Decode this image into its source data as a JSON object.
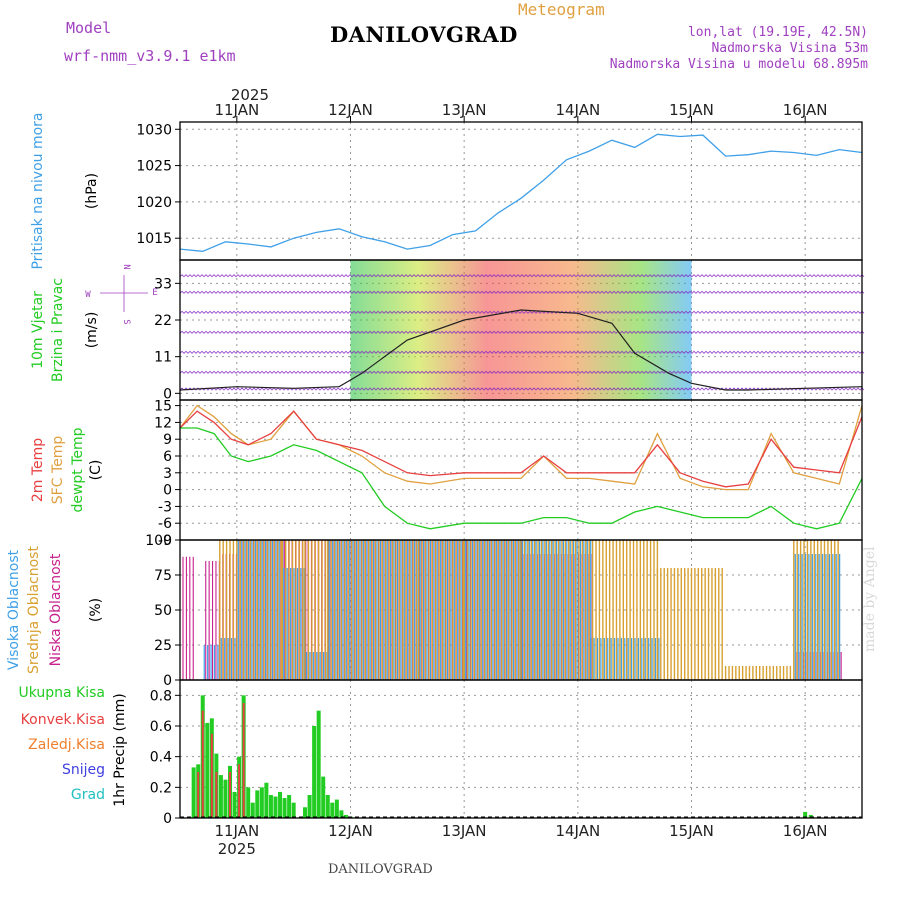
{
  "header": {
    "model_label": "Model",
    "model_name": "wrf-nmm_v3.9.1 e1km",
    "title": "DANILOVGRAD",
    "meteogram_label": "Meteogram",
    "lonlat": "lon,lat (19.19E, 42.5N)",
    "elevation": "Nadmorska Visina 53m",
    "model_elevation": "Nadmorska Visina u modelu 68.895m"
  },
  "footer": {
    "title": "DANILOVGRAD",
    "credit": "made by Angel"
  },
  "colors": {
    "pressure": "#3fa0e8",
    "temp2m": "#e84040",
    "sfc": "#e0a040",
    "dewpt": "#22cc22",
    "high_cloud": "#3fa0e8",
    "mid_cloud": "#d8a030",
    "low_cloud": "#c8208c",
    "total_precip": "#22cc22",
    "conv_precip": "#e84040",
    "frozen": "#f08030",
    "snow": "#4040e0",
    "hail": "#20c0c0",
    "wind_line": "#8020c0",
    "purple_label": "#a040c0"
  },
  "chart_data": [
    {
      "type": "line",
      "name": "pressure",
      "ylabel_top": "Pritisak na nivou mora",
      "unit": "(hPa)",
      "ylim": [
        1012,
        1031
      ],
      "yticks": [
        1015,
        1020,
        1025,
        1030
      ],
      "x_unit": "days since 2025-01-10 12:00",
      "x": [
        0,
        0.2,
        0.4,
        0.6,
        0.8,
        1.0,
        1.2,
        1.4,
        1.6,
        1.8,
        2.0,
        2.2,
        2.4,
        2.6,
        2.8,
        3.0,
        3.2,
        3.4,
        3.6,
        3.8,
        4.0,
        4.2,
        4.4,
        4.6,
        4.8,
        5.0,
        5.2,
        5.4,
        5.6,
        5.8,
        6.0
      ],
      "values": [
        1013.5,
        1013.2,
        1014.5,
        1014.2,
        1013.8,
        1015,
        1015.8,
        1016.3,
        1015.2,
        1014.5,
        1013.5,
        1014,
        1015.5,
        1016,
        1018.5,
        1020.5,
        1023,
        1025.8,
        1027,
        1028.5,
        1027.5,
        1029.3,
        1029,
        1029.2,
        1026.3,
        1026.5,
        1027,
        1026.8,
        1026.4,
        1027.2,
        1026.8
      ]
    },
    {
      "type": "line",
      "name": "wind",
      "ylabel_left": "10m Vjetar",
      "ylabel_right": "Brzina i Pravac",
      "unit": "(m/s)",
      "compass": [
        "N",
        "E",
        "S",
        "W"
      ],
      "ylim": [
        -2,
        40
      ],
      "yticks": [
        0,
        11,
        22,
        33
      ],
      "x_unit": "days since 2025-01-10 12:00",
      "x": [
        0,
        0.5,
        1.0,
        1.4,
        1.6,
        2.0,
        2.5,
        3.0,
        3.5,
        3.8,
        4.0,
        4.3,
        4.5,
        4.8,
        5.0,
        5.5,
        6.0
      ],
      "speed": [
        1,
        2,
        1.5,
        2,
        6,
        16,
        22,
        25,
        24,
        21,
        12,
        6,
        3,
        1,
        1,
        1.5,
        2
      ]
    },
    {
      "type": "line",
      "name": "temperature",
      "series_labels": [
        "2m Temp",
        "SFC Temp",
        "dewpt Temp"
      ],
      "unit": "(C)",
      "ylim": [
        -9,
        16
      ],
      "yticks": [
        -9,
        -6,
        -3,
        0,
        3,
        6,
        9,
        12,
        15
      ],
      "x_unit": "days since 2025-01-10 12:00",
      "x": [
        0,
        0.15,
        0.3,
        0.45,
        0.6,
        0.8,
        1.0,
        1.2,
        1.4,
        1.6,
        1.8,
        2.0,
        2.2,
        2.5,
        2.8,
        3.0,
        3.2,
        3.4,
        3.6,
        3.8,
        4.0,
        4.2,
        4.4,
        4.6,
        4.8,
        5.0,
        5.2,
        5.4,
        5.6,
        5.8,
        6.0
      ],
      "temp2m": [
        11,
        14,
        12,
        9,
        8,
        10,
        14,
        9,
        8,
        7,
        5,
        3,
        2.5,
        3,
        3,
        3,
        6,
        3,
        3,
        3,
        3,
        8,
        3,
        1.5,
        0.5,
        1,
        9,
        4,
        3.5,
        3,
        13
      ],
      "sfc": [
        11,
        15,
        13,
        10,
        8,
        9,
        14,
        9,
        8,
        6,
        3,
        1.5,
        1,
        2,
        2,
        2,
        6,
        2,
        2,
        1.5,
        1,
        10,
        2,
        0.5,
        0,
        0,
        10,
        3,
        2,
        1,
        15
      ],
      "dewpt": [
        11,
        11,
        10,
        6,
        5,
        6,
        8,
        7,
        5,
        3,
        -3,
        -6,
        -7,
        -6,
        -6,
        -6,
        -5,
        -5,
        -6,
        -6,
        -4,
        -3,
        -4,
        -5,
        -5,
        -5,
        -3,
        -6,
        -7,
        -6,
        2
      ]
    },
    {
      "type": "bar",
      "name": "cloud",
      "series_labels": [
        "Visoka Oblacnost",
        "Srednja Oblacnost",
        "Niska Oblacnost"
      ],
      "unit": "(%)",
      "ylim": [
        0,
        100
      ],
      "yticks": [
        0,
        25,
        50,
        75,
        100
      ],
      "x_unit": "days since 2025-01-10 12:00",
      "x_spans": [
        [
          0.0,
          0.1,
          0,
          0,
          88
        ],
        [
          0.2,
          0.35,
          25,
          0,
          85
        ],
        [
          0.35,
          0.5,
          30,
          100,
          90
        ],
        [
          0.5,
          0.9,
          100,
          100,
          100
        ],
        [
          0.9,
          1.1,
          80,
          100,
          100
        ],
        [
          1.1,
          1.3,
          20,
          100,
          100
        ],
        [
          1.3,
          1.6,
          100,
          100,
          100
        ],
        [
          1.6,
          2.1,
          100,
          100,
          100
        ],
        [
          2.1,
          2.5,
          100,
          100,
          100
        ],
        [
          2.5,
          3.0,
          100,
          100,
          100
        ],
        [
          3.0,
          3.6,
          100,
          100,
          90
        ],
        [
          3.6,
          4.2,
          30,
          100,
          0
        ],
        [
          4.2,
          4.8,
          0,
          80,
          0
        ],
        [
          4.8,
          5.4,
          0,
          10,
          0
        ],
        [
          5.4,
          5.8,
          90,
          100,
          20
        ],
        [
          5.8,
          6.0,
          0,
          0,
          0
        ]
      ]
    },
    {
      "type": "bar",
      "name": "precip",
      "series_labels": [
        "Ukupna Kisa",
        "Konvek.Kisa",
        "Zaledj.Kisa",
        "Snijeg",
        "Grad"
      ],
      "unit": "1hr Precip (mm)",
      "ylim": [
        0,
        0.9
      ],
      "yticks": [
        0,
        0.2,
        0.4,
        0.6,
        0.8
      ],
      "x_unit": "days since 2025-01-10 12:00",
      "x": [
        0.12,
        0.16,
        0.2,
        0.24,
        0.28,
        0.32,
        0.36,
        0.4,
        0.44,
        0.48,
        0.52,
        0.56,
        0.6,
        0.64,
        0.68,
        0.72,
        0.76,
        0.8,
        0.84,
        0.88,
        0.92,
        0.96,
        1.0,
        1.1,
        1.14,
        1.18,
        1.22,
        1.26,
        1.3,
        1.34,
        1.38,
        1.42,
        1.46,
        1.5,
        5.5,
        5.55
      ],
      "total": [
        0.33,
        0.35,
        0.8,
        0.62,
        0.65,
        0.42,
        0.28,
        0.25,
        0.34,
        0.17,
        0.4,
        0.8,
        0.2,
        0.1,
        0.18,
        0.2,
        0.23,
        0.15,
        0.14,
        0.17,
        0.13,
        0.15,
        0.1,
        0.07,
        0.15,
        0.6,
        0.7,
        0.27,
        0.15,
        0.1,
        0.12,
        0.05,
        0.02,
        0.01,
        0.04,
        0.02
      ],
      "convective": [
        0.0,
        0.3,
        0.7,
        0.0,
        0.55,
        0.3,
        0.0,
        0.0,
        0.3,
        0.0,
        0.35,
        0.75,
        0.0,
        0.0,
        0.0,
        0.0,
        0.0,
        0.0,
        0.0,
        0.0,
        0.0,
        0.0,
        0.0,
        0.0,
        0.0,
        0.0,
        0.0,
        0.0,
        0.0,
        0.0,
        0.0,
        0.0,
        0.0,
        0.0,
        0.0,
        0.0
      ]
    }
  ],
  "x_axis": {
    "year": "2025",
    "day_labels": [
      "11JAN",
      "12JAN",
      "13JAN",
      "14JAN",
      "15JAN",
      "16JAN"
    ],
    "day_positions": [
      0.5,
      1.5,
      2.5,
      3.5,
      4.5,
      5.5
    ],
    "xlim": [
      0,
      6
    ]
  }
}
